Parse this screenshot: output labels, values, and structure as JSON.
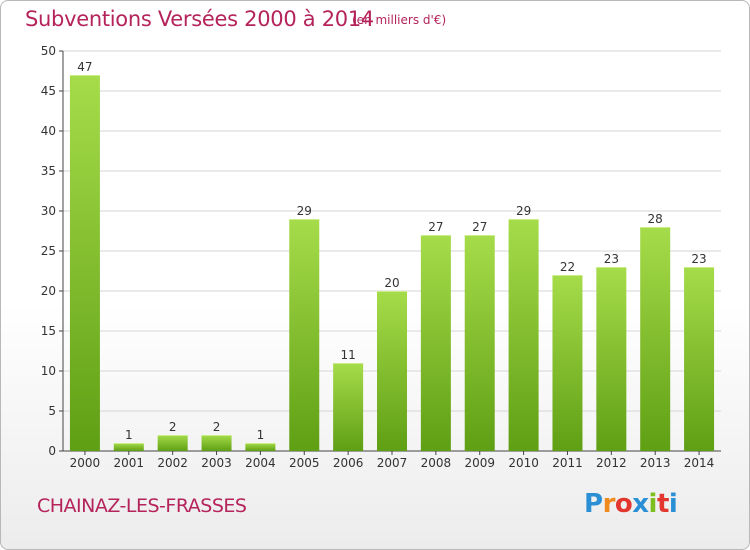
{
  "header": {
    "title": "Subventions Versées 2000 à 2014",
    "subtitle": "(en milliers d'€)"
  },
  "footer": {
    "commune": "CHAINAZ-LES-FRASSES",
    "brand_letters": [
      "P",
      "r",
      "o",
      "x",
      "i",
      "t",
      "i"
    ],
    "brand_colors": [
      "#2b8fd6",
      "#f08a1c",
      "#e2372f",
      "#2b8fd6",
      "#7cbf1e",
      "#e2372f",
      "#2b8fd6"
    ]
  },
  "colors": {
    "bar_light": "#a6dc4a",
    "bar_dark": "#5f9f14",
    "grid": "#d6d6d6",
    "axis": "#444444"
  },
  "chart_data": {
    "type": "bar",
    "title": "Subventions Versées 2000 à 2014",
    "subtitle": "(en milliers d'€)",
    "categories": [
      "2000",
      "2001",
      "2002",
      "2003",
      "2004",
      "2005",
      "2006",
      "2007",
      "2008",
      "2009",
      "2010",
      "2011",
      "2012",
      "2013",
      "2014"
    ],
    "values": [
      47,
      1,
      2,
      2,
      1,
      29,
      11,
      20,
      27,
      27,
      29,
      22,
      23,
      28,
      23
    ],
    "ylim": [
      0,
      50
    ],
    "yticks": [
      0,
      5,
      10,
      15,
      20,
      25,
      30,
      35,
      40,
      45,
      50
    ],
    "grid": true,
    "data_labels": true
  }
}
